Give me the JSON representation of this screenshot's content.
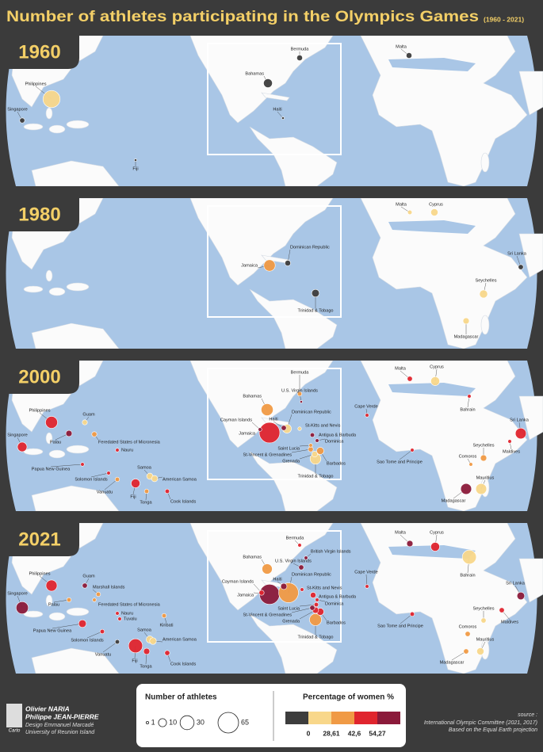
{
  "header": {
    "title": "Number of athletes participating in the Olympics Games",
    "subtitle": "(1960 - 2021)"
  },
  "panels": [
    {
      "year": "1960",
      "countries": [
        {
          "name": "Bermuda",
          "athletes": 5,
          "color": "#3d3d3d"
        },
        {
          "name": "Bahamas",
          "athletes": 12,
          "color": "#3d3d3d"
        },
        {
          "name": "Haiti",
          "athletes": 1,
          "color": "#3d3d3d"
        },
        {
          "name": "Malta",
          "athletes": 5,
          "color": "#3d3d3d"
        },
        {
          "name": "Philippines",
          "athletes": 45,
          "color": "#f8d78a"
        },
        {
          "name": "Singapore",
          "athletes": 4,
          "color": "#3d3d3d"
        },
        {
          "name": "Fiji",
          "athletes": 1,
          "color": "#3d3d3d"
        }
      ]
    },
    {
      "year": "1980",
      "countries": [
        {
          "name": "Malta",
          "athletes": 3,
          "color": "#f8d78a"
        },
        {
          "name": "Cyprus",
          "athletes": 8,
          "color": "#f8d78a"
        },
        {
          "name": "Sri Lanka",
          "athletes": 4,
          "color": "#3d3d3d"
        },
        {
          "name": "Dominican Republic",
          "athletes": 5,
          "color": "#3d3d3d"
        },
        {
          "name": "Jamaica",
          "athletes": 20,
          "color": "#f09a45"
        },
        {
          "name": "Trinidad & Tobago",
          "athletes": 9,
          "color": "#3d3d3d"
        },
        {
          "name": "Seychelles",
          "athletes": 10,
          "color": "#f8d78a"
        },
        {
          "name": "Madagascar",
          "athletes": 6,
          "color": "#f8d78a"
        }
      ]
    },
    {
      "year": "2000",
      "countries": [
        {
          "name": "Bermuda",
          "athletes": 3,
          "color": "#f09a45"
        },
        {
          "name": "Bahamas",
          "athletes": 22,
          "color": "#f09a45"
        },
        {
          "name": "U.S. Virgin Islands",
          "athletes": 1,
          "color": "#8b1a3a"
        },
        {
          "name": "Cayman Islands",
          "athletes": 2,
          "color": "#8b1a3a"
        },
        {
          "name": "Haiti",
          "athletes": 4,
          "color": "#8b1a3a"
        },
        {
          "name": "Jamaica",
          "athletes": 65,
          "color": "#e0252e"
        },
        {
          "name": "Dominican Republic",
          "athletes": 12,
          "color": "#f8d78a"
        },
        {
          "name": "St-Kitts and Nevis",
          "athletes": 2,
          "color": "#f8d78a"
        },
        {
          "name": "Antigua & Barbuda",
          "athletes": 3,
          "color": "#8b1a3a"
        },
        {
          "name": "Dominica",
          "athletes": 2,
          "color": "#8b1a3a"
        },
        {
          "name": "Saint Lucia",
          "athletes": 2,
          "color": "#f09a45"
        },
        {
          "name": "St-Vincent & Grenadines",
          "athletes": 4,
          "color": "#f09a45"
        },
        {
          "name": "Grenada",
          "athletes": 5,
          "color": "#f8d78a"
        },
        {
          "name": "Barbados",
          "athletes": 8,
          "color": "#f09a45"
        },
        {
          "name": "Trinidad & Tobago",
          "athletes": 18,
          "color": "#f8d78a"
        },
        {
          "name": "Malta",
          "athletes": 4,
          "color": "#e0252e"
        },
        {
          "name": "Cyprus",
          "athletes": 12,
          "color": "#f8d78a"
        },
        {
          "name": "Bahrain",
          "athletes": 2,
          "color": "#e0252e"
        },
        {
          "name": "Cape Verde",
          "athletes": 2,
          "color": "#e0252e"
        },
        {
          "name": "Sri Lanka",
          "athletes": 18,
          "color": "#e0252e"
        },
        {
          "name": "Maldives",
          "athletes": 2,
          "color": "#e0252e"
        },
        {
          "name": "Seychelles",
          "athletes": 6,
          "color": "#f09a45"
        },
        {
          "name": "Sao Tome and Principe",
          "athletes": 2,
          "color": "#e0252e"
        },
        {
          "name": "Comoros",
          "athletes": 2,
          "color": "#f09a45"
        },
        {
          "name": "Mauritius",
          "athletes": 18,
          "color": "#f8d78a"
        },
        {
          "name": "Madagascar",
          "athletes": 18,
          "color": "#8b1a3a"
        },
        {
          "name": "Philippines",
          "athletes": 22,
          "color": "#e0252e"
        },
        {
          "name": "Singapore",
          "athletes": 14,
          "color": "#e0252e"
        },
        {
          "name": "Palau",
          "athletes": 6,
          "color": "#8b1a3a"
        },
        {
          "name": "Guam",
          "athletes": 4,
          "color": "#f8d78a"
        },
        {
          "name": "Feredated States of Micronesia",
          "athletes": 4,
          "color": "#f09a45"
        },
        {
          "name": "Nauru",
          "athletes": 2,
          "color": "#e0252e"
        },
        {
          "name": "Papua New Guinea",
          "athletes": 2,
          "color": "#e0252e"
        },
        {
          "name": "Solomon Islands",
          "athletes": 2,
          "color": "#e0252e"
        },
        {
          "name": "Vanuatu",
          "athletes": 3,
          "color": "#f09a45"
        },
        {
          "name": "Samoa",
          "athletes": 6,
          "color": "#f8d78a"
        },
        {
          "name": "American Samoa",
          "athletes": 6,
          "color": "#f8d78a"
        },
        {
          "name": "Fiji",
          "athletes": 12,
          "color": "#e0252e"
        },
        {
          "name": "Tonga",
          "athletes": 3,
          "color": "#f09a45"
        },
        {
          "name": "Cook Islands",
          "athletes": 3,
          "color": "#e0252e"
        }
      ]
    },
    {
      "year": "2021",
      "countries": [
        {
          "name": "Bermuda",
          "athletes": 2,
          "color": "#e0252e"
        },
        {
          "name": "British Virgin Islands",
          "athletes": 2,
          "color": "#8b1a3a"
        },
        {
          "name": "Bahamas",
          "athletes": 16,
          "color": "#f09a45"
        },
        {
          "name": "U.S. Virgin Islands",
          "athletes": 4,
          "color": "#8b1a3a"
        },
        {
          "name": "Cayman Islands",
          "athletes": 4,
          "color": "#e0252e"
        },
        {
          "name": "Haiti",
          "athletes": 6,
          "color": "#8b1a3a"
        },
        {
          "name": "Jamaica",
          "athletes": 62,
          "color": "#8b1a3a"
        },
        {
          "name": "Dominican Republic",
          "athletes": 60,
          "color": "#f09a45"
        },
        {
          "name": "St-Kitts and Nevis",
          "athletes": 2,
          "color": "#e0252e"
        },
        {
          "name": "Antigua & Barbuda",
          "athletes": 5,
          "color": "#e0252e"
        },
        {
          "name": "Dominica",
          "athletes": 2,
          "color": "#e0252e"
        },
        {
          "name": "Saint Lucia",
          "athletes": 3,
          "color": "#e0252e"
        },
        {
          "name": "St-Vincent & Grenadines",
          "athletes": 4,
          "color": "#8b1a3a"
        },
        {
          "name": "Grenada",
          "athletes": 6,
          "color": "#e0252e"
        },
        {
          "name": "Barbados",
          "athletes": 8,
          "color": "#e0252e"
        },
        {
          "name": "Trinidad & Tobago",
          "athletes": 22,
          "color": "#f09a45"
        },
        {
          "name": "Malta",
          "athletes": 6,
          "color": "#8b1a3a"
        },
        {
          "name": "Cyprus",
          "athletes": 12,
          "color": "#e0252e"
        },
        {
          "name": "Bahrain",
          "athletes": 30,
          "color": "#f8d78a"
        },
        {
          "name": "Cape Verde",
          "athletes": 2,
          "color": "#e0252e"
        },
        {
          "name": "Sri Lanka",
          "athletes": 9,
          "color": "#8b1a3a"
        },
        {
          "name": "Maldives",
          "athletes": 4,
          "color": "#e0252e"
        },
        {
          "name": "Seychelles",
          "athletes": 4,
          "color": "#f8d78a"
        },
        {
          "name": "Sao Tome and Principe",
          "athletes": 3,
          "color": "#e0252e"
        },
        {
          "name": "Comoros",
          "athletes": 4,
          "color": "#f09a45"
        },
        {
          "name": "Mauritius",
          "athletes": 8,
          "color": "#f8d78a"
        },
        {
          "name": "Madagascar",
          "athletes": 4,
          "color": "#f09a45"
        },
        {
          "name": "Philippines",
          "athletes": 19,
          "color": "#e0252e"
        },
        {
          "name": "Singapore",
          "athletes": 23,
          "color": "#8b1a3a"
        },
        {
          "name": "Palau",
          "athletes": 3,
          "color": "#f09a45"
        },
        {
          "name": "Guam",
          "athletes": 4,
          "color": "#8b1a3a"
        },
        {
          "name": "Marshall Islands",
          "athletes": 3,
          "color": "#f09a45"
        },
        {
          "name": "Feredated States of Micronesia",
          "athletes": 2,
          "color": "#f09a45"
        },
        {
          "name": "Nauru",
          "athletes": 2,
          "color": "#e0252e"
        },
        {
          "name": "Tuvalu",
          "athletes": 2,
          "color": "#e0252e"
        },
        {
          "name": "Kiribati",
          "athletes": 3,
          "color": "#f09a45"
        },
        {
          "name": "Papua New Guinea",
          "athletes": 9,
          "color": "#e0252e"
        },
        {
          "name": "Solomon Islands",
          "athletes": 3,
          "color": "#e0252e"
        },
        {
          "name": "Vanuatu",
          "athletes": 3,
          "color": "#3d3d3d"
        },
        {
          "name": "Samoa",
          "athletes": 8,
          "color": "#f8d78a"
        },
        {
          "name": "American Samoa",
          "athletes": 7,
          "color": "#f8d78a"
        },
        {
          "name": "Fiji",
          "athletes": 30,
          "color": "#e0252e"
        },
        {
          "name": "Tonga",
          "athletes": 6,
          "color": "#e0252e"
        },
        {
          "name": "Cook Islands",
          "athletes": 4,
          "color": "#e0252e"
        }
      ]
    }
  ],
  "legend": {
    "sizes": {
      "title": "Number of athletes",
      "values": [
        1,
        10,
        30,
        65
      ]
    },
    "colors": {
      "title": "Percentage of women %",
      "colors": [
        "#3d3d3d",
        "#f8d78a",
        "#f09a45",
        "#e0252e",
        "#8b1a3a"
      ],
      "breaks": [
        "0",
        "28,61",
        "42,6",
        "54,27"
      ]
    }
  },
  "credits": {
    "authors": [
      "Olivier NARIA",
      "Philippe JEAN-PIERRE"
    ],
    "design": "Design Emmanuel Marcadé",
    "university": "University of Reunion Island",
    "logo": "Carto"
  },
  "source": {
    "label": "source :",
    "lines": [
      "International Olympic Committee (2021, 2017)",
      "Based on the Equal Earth projection"
    ]
  }
}
